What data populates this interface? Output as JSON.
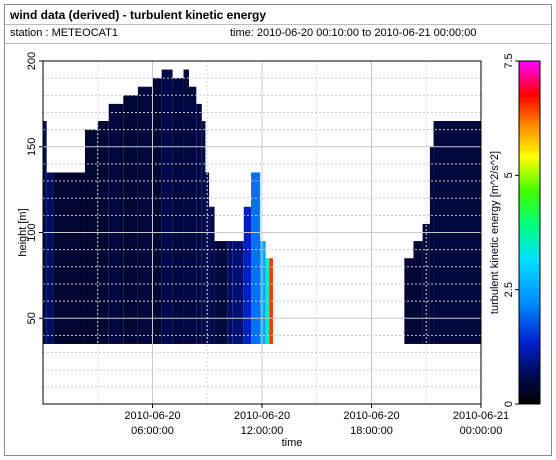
{
  "header": {
    "title": "wind data (derived) - turbulent kinetic energy",
    "station": "station : METEOCAT1",
    "timerange": "time: 2010-06-20 00:10:00 to 2010-06-21 00:00:00"
  },
  "chart_data": {
    "type": "heatmap",
    "xlabel": "time",
    "ylabel": "height [m]",
    "x_ticks": [
      {
        "hour": 6,
        "line1": "2010-06-20",
        "line2": "06:00:00"
      },
      {
        "hour": 12,
        "line1": "2010-06-20",
        "line2": "12:00:00"
      },
      {
        "hour": 18,
        "line1": "2010-06-20",
        "line2": "18:00:00"
      },
      {
        "hour": 24,
        "line1": "2010-06-21",
        "line2": "00:00:00"
      }
    ],
    "xlim_hours": [
      0,
      24
    ],
    "y_ticks": [
      50,
      100,
      150,
      200
    ],
    "ylim": [
      0,
      200
    ],
    "grid": true,
    "colorbar": {
      "label": "turbulent kinetic energy [m^2/s^2]",
      "ticks": [
        "0",
        "2.5",
        "5",
        "7.5"
      ],
      "tick_values": [
        0,
        2.5,
        5,
        7.5
      ],
      "range": [
        0,
        7.5
      ]
    },
    "columns": [
      {
        "t0": 0.0,
        "t1": 0.2,
        "top": 165,
        "tke": 0.6
      },
      {
        "t0": 0.2,
        "t1": 0.6,
        "top": 135,
        "tke": 0.7
      },
      {
        "t0": 0.6,
        "t1": 2.3,
        "top": 135,
        "tke": 0.35
      },
      {
        "t0": 2.3,
        "t1": 3.0,
        "top": 160,
        "tke": 0.35
      },
      {
        "t0": 3.0,
        "t1": 3.6,
        "top": 165,
        "tke": 0.4
      },
      {
        "t0": 3.6,
        "t1": 4.4,
        "top": 175,
        "tke": 0.45
      },
      {
        "t0": 4.4,
        "t1": 5.2,
        "top": 180,
        "tke": 0.4
      },
      {
        "t0": 5.2,
        "t1": 6.0,
        "top": 185,
        "tke": 0.45
      },
      {
        "t0": 6.0,
        "t1": 6.5,
        "top": 190,
        "tke": 0.4
      },
      {
        "t0": 6.5,
        "t1": 7.1,
        "top": 195,
        "tke": 0.55
      },
      {
        "t0": 7.1,
        "t1": 7.7,
        "top": 190,
        "tke": 0.5
      },
      {
        "t0": 7.7,
        "t1": 8.0,
        "top": 195,
        "tke": 0.45
      },
      {
        "t0": 8.0,
        "t1": 8.4,
        "top": 185,
        "tke": 0.5
      },
      {
        "t0": 8.4,
        "t1": 8.7,
        "top": 175,
        "tke": 0.5
      },
      {
        "t0": 8.7,
        "t1": 8.9,
        "top": 165,
        "tke": 0.55
      },
      {
        "t0": 8.9,
        "t1": 9.1,
        "top": 135,
        "tke": 0.55
      },
      {
        "t0": 9.1,
        "t1": 9.4,
        "top": 115,
        "tke": 0.55
      },
      {
        "t0": 9.4,
        "t1": 10.1,
        "top": 95,
        "tke": 0.45
      },
      {
        "t0": 10.1,
        "t1": 10.4,
        "top": 95,
        "tke": 0.75
      },
      {
        "t0": 10.4,
        "t1": 11.0,
        "top": 95,
        "tke": 0.8
      },
      {
        "t0": 11.0,
        "t1": 11.4,
        "top": 115,
        "tke": 1.3
      },
      {
        "t0": 11.4,
        "t1": 11.9,
        "top": 135,
        "tke": 2.0
      },
      {
        "t0": 11.9,
        "t1": 12.2,
        "top": 95,
        "tke": 2.5
      },
      {
        "t0": 12.2,
        "t1": 12.4,
        "top": 85,
        "tke": 3.5
      },
      {
        "t0": 12.4,
        "t1": 12.6,
        "top": 85,
        "tke": 6.5
      },
      {
        "t0": 19.8,
        "t1": 20.3,
        "top": 85,
        "tke": 0.4
      },
      {
        "t0": 20.3,
        "t1": 20.8,
        "top": 95,
        "tke": 0.4
      },
      {
        "t0": 20.8,
        "t1": 21.2,
        "top": 105,
        "tke": 0.45
      },
      {
        "t0": 21.2,
        "t1": 21.4,
        "top": 150,
        "tke": 0.5
      },
      {
        "t0": 21.4,
        "t1": 24.0,
        "top": 165,
        "tke": 0.45
      }
    ],
    "bottom_height": 35
  }
}
